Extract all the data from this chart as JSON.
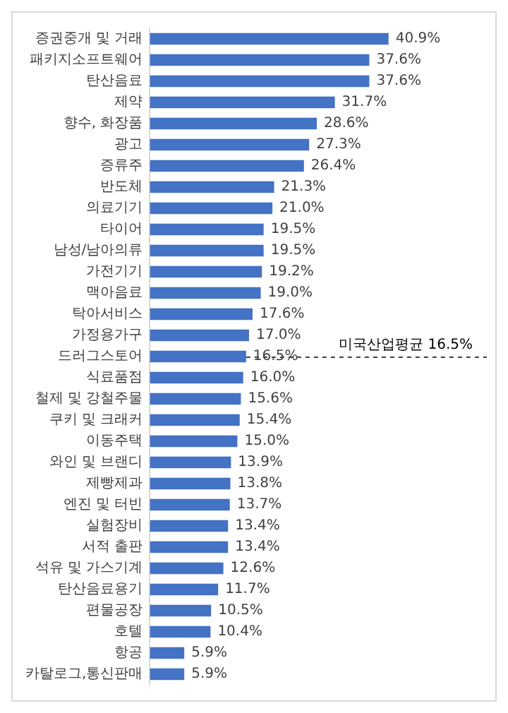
{
  "chart_data": {
    "type": "bar",
    "orientation": "horizontal",
    "categories": [
      "증권중개 및 거래",
      "패키지소프트웨어",
      "탄산음료",
      "제약",
      "향수, 화장품",
      "광고",
      "증류주",
      "반도체",
      "의료기기",
      "타이어",
      "남성/남아의류",
      "가전기기",
      "맥아음료",
      "탁아서비스",
      "가정용가구",
      "드러그스토어",
      "식료품점",
      "철제 및 강철주물",
      "쿠키 및 크래커",
      "이동주택",
      "와인 및 브랜디",
      "제빵제과",
      "엔진 및 터빈",
      "실험장비",
      "서적 출판",
      "석유 및 가스기계",
      "탄산음료용기",
      "편물공장",
      "호텔",
      "항공",
      "카탈로그,통신판매"
    ],
    "values": [
      40.9,
      37.6,
      37.6,
      31.7,
      28.6,
      27.3,
      26.4,
      21.3,
      21.0,
      19.5,
      19.5,
      19.2,
      19.0,
      17.6,
      17.0,
      16.5,
      16.0,
      15.6,
      15.4,
      15.0,
      13.9,
      13.8,
      13.7,
      13.4,
      13.4,
      12.6,
      11.7,
      10.5,
      10.4,
      5.9,
      5.9
    ],
    "value_labels": [
      "40.9%",
      "37.6%",
      "37.6%",
      "31.7%",
      "28.6%",
      "27.3%",
      "26.4%",
      "21.3%",
      "21.0%",
      "19.5%",
      "19.5%",
      "19.2%",
      "19.0%",
      "17.6%",
      "17.0%",
      "16.5%",
      "16.0%",
      "15.6%",
      "15.4%",
      "15.0%",
      "13.9%",
      "13.8%",
      "13.7%",
      "13.4%",
      "13.4%",
      "12.6%",
      "11.7%",
      "10.5%",
      "10.4%",
      "5.9%",
      "5.9%"
    ],
    "color": "#4472c4",
    "annotations": [
      "미국산업평균 16.5%"
    ]
  }
}
